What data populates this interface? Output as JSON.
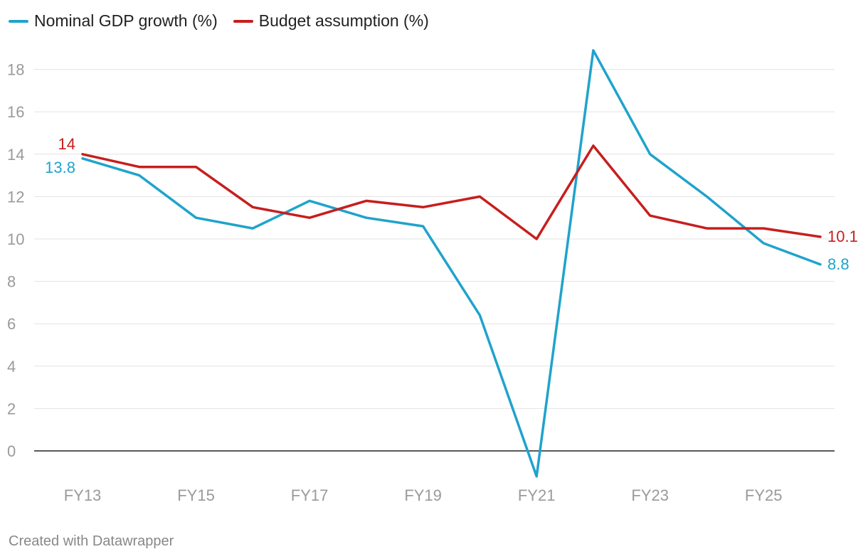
{
  "chart_data": {
    "type": "line",
    "title": "",
    "xlabel": "",
    "ylabel": "",
    "x": [
      "FY13",
      "FY14",
      "FY15",
      "FY16",
      "FY17",
      "FY18",
      "FY19",
      "FY20",
      "FY21",
      "FY22",
      "FY23",
      "FY24",
      "FY25",
      "FY26"
    ],
    "x_tick_labels": [
      "FY13",
      "FY15",
      "FY17",
      "FY19",
      "FY21",
      "FY23",
      "FY25"
    ],
    "y_ticks": [
      0,
      2,
      4,
      6,
      8,
      10,
      12,
      14,
      16,
      18
    ],
    "ylim": [
      -1.2,
      18.9
    ],
    "grid": true,
    "legend_position": "top-left",
    "series": [
      {
        "name": "Nominal GDP growth (%)",
        "color": "#1fa3cc",
        "values": [
          13.8,
          13.0,
          11.0,
          10.5,
          11.8,
          11.0,
          10.6,
          6.4,
          -1.2,
          18.9,
          14.0,
          12.0,
          9.8,
          8.8
        ],
        "start_label": "13.8",
        "end_label": "8.8"
      },
      {
        "name": "Budget assumption (%)",
        "color": "#c71e1d",
        "values": [
          14.0,
          13.4,
          13.4,
          11.5,
          11.0,
          11.8,
          11.5,
          12.0,
          10.0,
          14.4,
          11.1,
          10.5,
          10.5,
          10.1
        ],
        "start_label": "14",
        "end_label": "10.1"
      }
    ]
  },
  "footer": "Created with Datawrapper"
}
